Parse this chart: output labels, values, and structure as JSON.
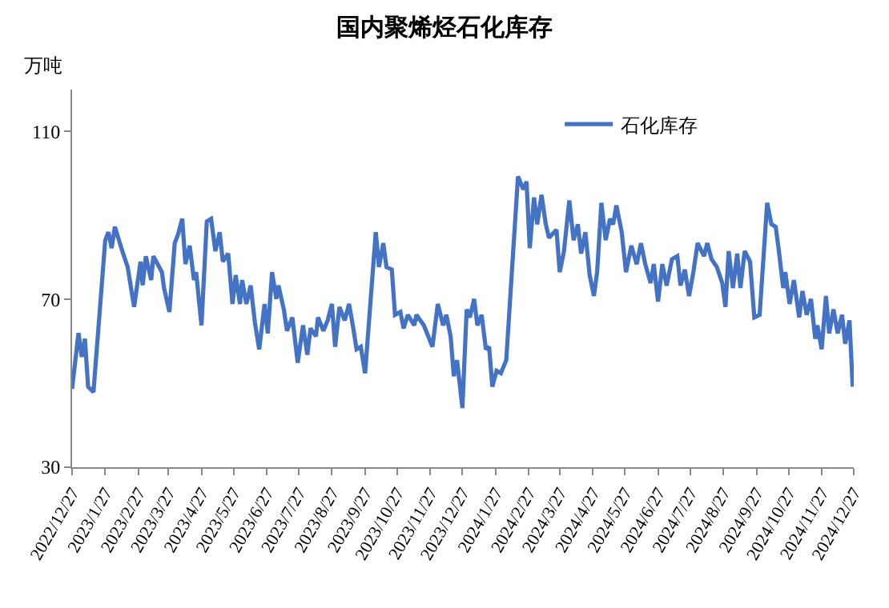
{
  "chart_data": {
    "type": "line",
    "title": "国内聚烯烃石化库存",
    "ylabel": "万吨",
    "xlim": [
      "2022-12-27",
      "2024-12-27"
    ],
    "ylim": [
      30,
      120
    ],
    "yticks": [
      30,
      70,
      110
    ],
    "xticks": [
      {
        "value": "2022-12-27",
        "label": "2022/12/27"
      },
      {
        "value": "2023-01-27",
        "label": "2023/1/27"
      },
      {
        "value": "2023-02-27",
        "label": "2023/2/27"
      },
      {
        "value": "2023-03-27",
        "label": "2023/3/27"
      },
      {
        "value": "2023-04-27",
        "label": "2023/4/27"
      },
      {
        "value": "2023-05-27",
        "label": "2023/5/27"
      },
      {
        "value": "2023-06-27",
        "label": "2023/6/27"
      },
      {
        "value": "2023-07-27",
        "label": "2023/7/27"
      },
      {
        "value": "2023-08-27",
        "label": "2023/8/27"
      },
      {
        "value": "2023-09-27",
        "label": "2023/9/27"
      },
      {
        "value": "2023-10-27",
        "label": "2023/10/27"
      },
      {
        "value": "2023-11-27",
        "label": "2023/11/27"
      },
      {
        "value": "2023-12-27",
        "label": "2023/12/27"
      },
      {
        "value": "2024-01-27",
        "label": "2024/1/27"
      },
      {
        "value": "2024-02-27",
        "label": "2024/2/27"
      },
      {
        "value": "2024-03-27",
        "label": "2024/3/27"
      },
      {
        "value": "2024-04-27",
        "label": "2024/4/27"
      },
      {
        "value": "2024-05-27",
        "label": "2024/5/27"
      },
      {
        "value": "2024-06-27",
        "label": "2024/6/27"
      },
      {
        "value": "2024-07-27",
        "label": "2024/7/27"
      },
      {
        "value": "2024-08-27",
        "label": "2024/8/27"
      },
      {
        "value": "2024-09-27",
        "label": "2024/9/27"
      },
      {
        "value": "2024-10-27",
        "label": "2024/10/27"
      },
      {
        "value": "2024-11-27",
        "label": "2024/11/27"
      },
      {
        "value": "2024-12-27",
        "label": "2024/12/27"
      }
    ],
    "grid": false,
    "legend": "top right",
    "marker": "none",
    "line_style": "solid",
    "series": [
      {
        "name": "石化库存",
        "color": "#4472c4",
        "x": [
          "2022-12-27",
          "2023-01-02",
          "2023-01-05",
          "2023-01-08",
          "2023-01-11",
          "2023-01-16",
          "2023-01-27",
          "2023-01-30",
          "2023-02-02",
          "2023-02-05",
          "2023-02-12",
          "2023-02-17",
          "2023-02-23",
          "2023-03-01",
          "2023-03-03",
          "2023-03-06",
          "2023-03-11",
          "2023-03-13",
          "2023-03-21",
          "2023-03-23",
          "2023-03-28",
          "2023-04-02",
          "2023-04-05",
          "2023-04-09",
          "2023-04-12",
          "2023-04-16",
          "2023-04-20",
          "2023-04-22",
          "2023-04-27",
          "2023-05-02",
          "2023-05-06",
          "2023-05-10",
          "2023-05-14",
          "2023-05-17",
          "2023-05-22",
          "2023-05-26",
          "2023-05-29",
          "2023-06-02",
          "2023-06-04",
          "2023-06-08",
          "2023-06-12",
          "2023-06-16",
          "2023-06-20",
          "2023-06-25",
          "2023-06-28",
          "2023-07-02",
          "2023-07-06",
          "2023-07-08",
          "2023-07-13",
          "2023-07-16",
          "2023-07-21",
          "2023-07-26",
          "2023-07-31",
          "2023-08-04",
          "2023-08-07",
          "2023-08-12",
          "2023-08-14",
          "2023-08-19",
          "2023-08-23",
          "2023-08-27",
          "2023-08-30",
          "2023-09-03",
          "2023-09-08",
          "2023-09-12",
          "2023-09-16",
          "2023-09-19",
          "2023-09-23",
          "2023-09-27",
          "2023-10-07",
          "2023-10-10",
          "2023-10-14",
          "2023-10-17",
          "2023-10-22",
          "2023-10-25",
          "2023-10-30",
          "2023-11-02",
          "2023-11-06",
          "2023-11-12",
          "2023-11-14",
          "2023-11-21",
          "2023-11-27",
          "2023-11-29",
          "2023-12-04",
          "2023-12-09",
          "2023-12-12",
          "2023-12-16",
          "2023-12-19",
          "2023-12-22",
          "2023-12-27",
          "2023-12-31",
          "2024-01-03",
          "2024-01-07",
          "2024-01-10",
          "2024-01-14",
          "2024-01-18",
          "2024-01-21",
          "2024-01-24",
          "2024-01-28",
          "2024-02-01",
          "2024-02-06",
          "2024-02-17",
          "2024-02-22",
          "2024-02-25",
          "2024-02-28",
          "2024-03-03",
          "2024-03-06",
          "2024-03-10",
          "2024-03-14",
          "2024-03-17",
          "2024-03-24",
          "2024-03-27",
          "2024-03-31",
          "2024-04-05",
          "2024-04-09",
          "2024-04-13",
          "2024-04-16",
          "2024-04-20",
          "2024-04-24",
          "2024-04-28",
          "2024-05-01",
          "2024-05-05",
          "2024-05-09",
          "2024-05-13",
          "2024-05-16",
          "2024-05-19",
          "2024-05-24",
          "2024-05-28",
          "2024-06-02",
          "2024-06-07",
          "2024-06-11",
          "2024-06-15",
          "2024-06-20",
          "2024-06-23",
          "2024-06-27",
          "2024-07-01",
          "2024-07-05",
          "2024-07-10",
          "2024-07-15",
          "2024-07-18",
          "2024-07-22",
          "2024-07-26",
          "2024-07-30",
          "2024-08-03",
          "2024-08-09",
          "2024-08-12",
          "2024-08-16",
          "2024-08-21",
          "2024-08-26",
          "2024-08-29",
          "2024-09-01",
          "2024-09-05",
          "2024-09-09",
          "2024-09-12",
          "2024-09-16",
          "2024-09-21",
          "2024-09-25",
          "2024-09-30",
          "2024-10-07",
          "2024-10-11",
          "2024-10-15",
          "2024-10-18",
          "2024-10-22",
          "2024-10-24",
          "2024-10-28",
          "2024-11-01",
          "2024-11-06",
          "2024-11-09",
          "2024-11-13",
          "2024-11-17",
          "2024-11-21",
          "2024-11-23",
          "2024-11-27",
          "2024-12-01",
          "2024-12-04",
          "2024-12-08",
          "2024-12-12",
          "2024-12-16",
          "2024-12-19",
          "2024-12-23",
          "2024-12-26"
        ],
        "values": [
          48.7,
          62,
          56.3,
          60.6,
          49.2,
          47.9,
          84.1,
          86,
          82.2,
          87.3,
          81.5,
          77.7,
          68.2,
          79,
          73.4,
          80.3,
          74.6,
          80.3,
          76.5,
          72.7,
          67,
          83.4,
          85.4,
          89.2,
          78.4,
          82.8,
          74.6,
          76.5,
          63.8,
          88.6,
          89.2,
          81.5,
          86,
          79,
          80.9,
          68.9,
          75.8,
          68.9,
          74.6,
          68.9,
          73.3,
          64.4,
          58.1,
          68.9,
          61.9,
          76.5,
          70.1,
          73.3,
          67.6,
          62.5,
          65.7,
          54.9,
          63.8,
          56.8,
          63.1,
          61.2,
          65.7,
          62.5,
          65,
          68.9,
          58.7,
          68.2,
          65,
          68.9,
          63.1,
          58.1,
          58.7,
          52.4,
          86,
          77.7,
          83.4,
          77.7,
          77.1,
          66.3,
          67,
          63.1,
          66.3,
          63.8,
          66.3,
          63.8,
          60,
          58.7,
          68.9,
          63.8,
          66.3,
          61.2,
          51.7,
          55.5,
          44.1,
          67.6,
          65.7,
          70.1,
          63.8,
          66.3,
          58.1,
          58.7,
          49.2,
          53,
          52.4,
          55.5,
          99.3,
          96.2,
          98.1,
          82.2,
          94.3,
          87.9,
          94.9,
          87.9,
          84.7,
          86.6,
          76.5,
          81.5,
          93.6,
          84.1,
          87.9,
          80.9,
          86,
          75.8,
          70.8,
          76.5,
          93,
          84.1,
          89.2,
          87.9,
          92.4,
          86,
          76.5,
          82.8,
          78.4,
          83.4,
          78.4,
          73.9,
          78.4,
          69.5,
          78.4,
          73.3,
          79.6,
          80.3,
          73.3,
          77.1,
          70.8,
          76.5,
          83.4,
          80.3,
          83.4,
          79.6,
          77.7,
          73.9,
          68.2,
          81.5,
          72.7,
          80.9,
          72.7,
          81.5,
          79,
          65.7,
          66.3,
          93,
          87.9,
          87.3,
          81.5,
          72.7,
          76.5,
          68.9,
          74.6,
          65.7,
          72,
          66.3,
          70.1,
          60.6,
          63.8,
          58.1,
          70.8,
          61.9,
          67.6,
          61.9,
          66.3,
          59.4,
          65,
          49.2
        ]
      }
    ]
  }
}
